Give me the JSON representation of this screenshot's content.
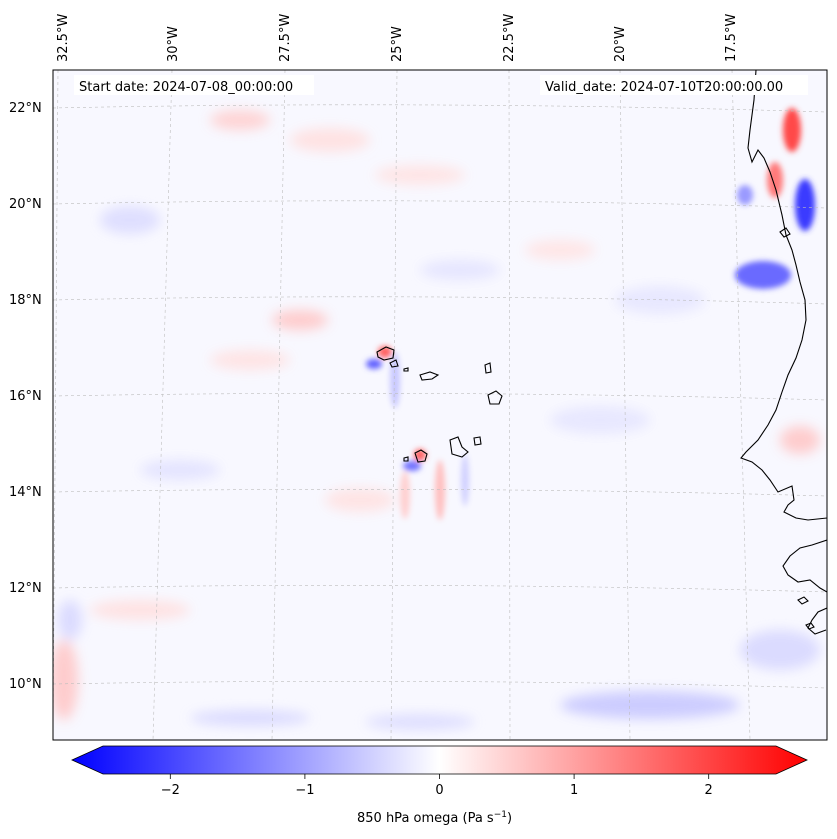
{
  "header": {
    "start_date": "Start date: 2024-07-08_00:00:00",
    "valid_date": "Valid_date: 2024-07-10T20:00:00.00"
  },
  "axes": {
    "lon_labels": [
      "32.5°W",
      "30°W",
      "27.5°W",
      "25°W",
      "22.5°W",
      "20°W",
      "17.5°W"
    ],
    "lat_labels": [
      "22°N",
      "20°N",
      "18°N",
      "16°N",
      "14°N",
      "12°N",
      "10°N"
    ]
  },
  "colorbar": {
    "label_main": "850 hPa omega (Pa s",
    "label_exp": "−1",
    "label_close": ")",
    "ticks": [
      "−2",
      "−1",
      "0",
      "1",
      "2"
    ],
    "tick_values": [
      -2,
      -1,
      0,
      1,
      2
    ],
    "range": [
      -2.5,
      2.5
    ],
    "colors": {
      "negative": "#0000ff",
      "zero": "#ffffff",
      "positive": "#ff0000"
    }
  },
  "chart_data": {
    "type": "filled-contour map",
    "variable": "850 hPa omega",
    "units": "Pa s-1",
    "region": {
      "lon": [
        -33,
        -15.8
      ],
      "lat": [
        8.9,
        22.8
      ]
    },
    "features": [
      {
        "name": "Cape Verde islands",
        "lon": -24.0,
        "lat": 15.8
      },
      {
        "name": "West African coast",
        "lon": -17.0,
        "lat": 14.7
      }
    ]
  }
}
